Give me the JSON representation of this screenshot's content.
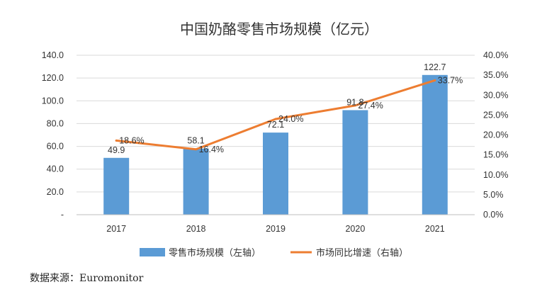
{
  "chart_data": {
    "type": "bar",
    "title": "中国奶酪零售市场规模（亿元）",
    "categories": [
      "2017",
      "2018",
      "2019",
      "2020",
      "2021"
    ],
    "series": [
      {
        "name": "零售市场规模（左轴）",
        "type": "bar",
        "axis": "left",
        "values": [
          49.9,
          58.1,
          72.1,
          91.8,
          122.7
        ],
        "labels": [
          "49.9",
          "58.1",
          "72.1",
          "91.8",
          "122.7"
        ],
        "color": "#5b9bd5"
      },
      {
        "name": "市场同比增速（右轴）",
        "type": "line",
        "axis": "right",
        "values": [
          18.6,
          16.4,
          24.0,
          27.4,
          33.7
        ],
        "labels": [
          "18.6%",
          "16.4%",
          "24.0%",
          "27.4%",
          "33.7%"
        ],
        "color": "#ed7d31"
      }
    ],
    "left_axis": {
      "ylim": [
        0,
        140
      ],
      "ticks": [
        0,
        20,
        40,
        60,
        80,
        100,
        120,
        140
      ],
      "tick_labels": [
        "-",
        "20.0",
        "40.0",
        "60.0",
        "80.0",
        "100.0",
        "120.0",
        "140.0"
      ]
    },
    "right_axis": {
      "ylim": [
        0,
        40
      ],
      "ticks": [
        0,
        5,
        10,
        15,
        20,
        25,
        30,
        35,
        40
      ],
      "tick_labels": [
        "0.0%",
        "5.0%",
        "10.0%",
        "15.0%",
        "20.0%",
        "25.0%",
        "30.0%",
        "35.0%",
        "40.0%"
      ]
    },
    "grid": true,
    "legend_position": "bottom"
  },
  "source": "数据来源：Euromonitor"
}
